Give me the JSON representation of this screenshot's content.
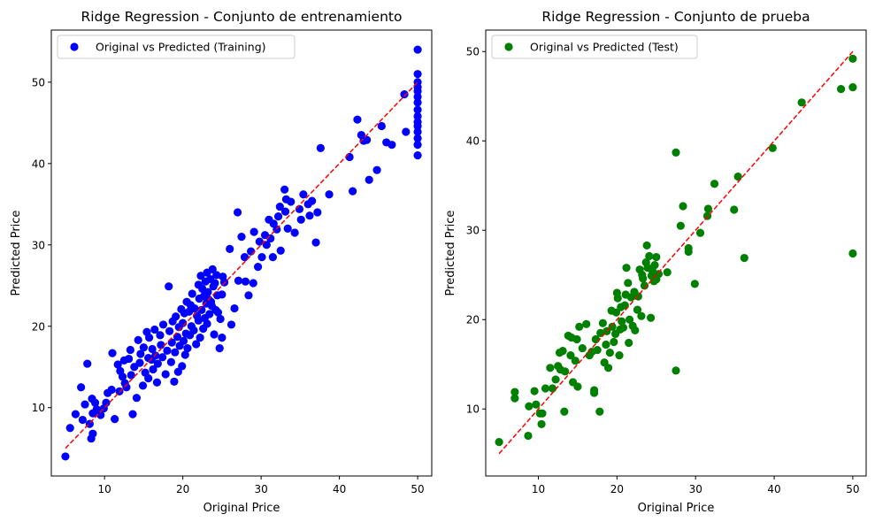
{
  "chart_data": [
    {
      "type": "scatter",
      "title": "Ridge Regression - Conjunto de entrenamiento",
      "xlabel": "Original Price",
      "ylabel": "Predicted Price",
      "xlim": [
        3.2,
        51.8
      ],
      "ylim": [
        1.6,
        56.4
      ],
      "xticks": [
        10,
        20,
        30,
        40,
        50
      ],
      "yticks": [
        10,
        20,
        30,
        40,
        50
      ],
      "legend_position": "upper-left",
      "reference_line": {
        "style": "dashed",
        "color": "#ff0000",
        "from": [
          5,
          5
        ],
        "to": [
          50,
          50
        ]
      },
      "series": [
        {
          "name": "Original vs Predicted (Training)",
          "color": "#0000ff",
          "x": [
            5.0,
            5.6,
            6.3,
            7.0,
            7.2,
            7.5,
            7.8,
            8.1,
            8.3,
            8.5,
            8.5,
            8.4,
            8.8,
            9.0,
            9.5,
            9.9,
            10.2,
            10.4,
            10.9,
            11.0,
            11.3,
            11.7,
            11.9,
            12.0,
            12.3,
            12.5,
            12.6,
            12.8,
            13.1,
            13.3,
            13.4,
            13.6,
            13.8,
            14.1,
            14.3,
            14.5,
            14.6,
            14.9,
            15.0,
            15.2,
            15.4,
            15.6,
            15.6,
            15.7,
            16.0,
            16.1,
            16.2,
            16.4,
            16.5,
            16.7,
            16.8,
            17.1,
            17.2,
            17.4,
            17.5,
            17.8,
            18.0,
            18.2,
            18.3,
            18.5,
            18.6,
            18.7,
            18.9,
            19.0,
            19.1,
            19.3,
            19.4,
            19.5,
            19.6,
            19.8,
            19.9,
            20.0,
            20.1,
            20.2,
            20.3,
            20.4,
            20.5,
            20.6,
            20.8,
            20.9,
            21.0,
            21.1,
            21.2,
            21.4,
            21.5,
            21.7,
            21.8,
            22.0,
            22.0,
            22.1,
            22.2,
            22.3,
            22.4,
            22.5,
            22.6,
            22.7,
            22.8,
            22.9,
            23.0,
            23.1,
            23.1,
            23.2,
            23.3,
            23.4,
            23.5,
            23.6,
            23.7,
            23.8,
            23.9,
            24.0,
            24.1,
            24.2,
            24.3,
            24.4,
            24.5,
            24.7,
            24.8,
            25.0,
            25.0,
            25.1,
            25.3,
            26.0,
            26.2,
            26.6,
            27.0,
            27.1,
            27.5,
            27.9,
            28.0,
            28.4,
            28.7,
            29.0,
            29.1,
            29.6,
            29.8,
            30.1,
            30.5,
            30.7,
            31.0,
            31.2,
            31.5,
            31.6,
            32.0,
            32.2,
            32.4,
            32.5,
            33.0,
            33.1,
            33.2,
            33.4,
            33.8,
            34.3,
            34.9,
            35.1,
            35.4,
            36.0,
            36.2,
            36.5,
            37.0,
            37.2,
            37.6,
            38.7,
            41.3,
            41.7,
            42.3,
            42.8,
            43.1,
            43.5,
            43.8,
            44.8,
            45.4,
            46.0,
            46.7,
            48.3,
            48.5,
            50.0,
            50.0,
            50.0,
            50.0,
            50.0,
            50.0,
            50.0,
            50.0,
            50.0,
            50.0,
            50.0,
            50.0,
            50.0,
            50.0,
            50.0
          ],
          "y": [
            4.0,
            7.5,
            9.2,
            12.5,
            8.5,
            10.4,
            15.4,
            8.0,
            6.2,
            6.8,
            9.3,
            11.1,
            10.6,
            9.8,
            9.1,
            9.9,
            10.6,
            11.8,
            12.2,
            16.7,
            8.6,
            15.3,
            12.0,
            14.5,
            13.8,
            15.8,
            13.0,
            12.5,
            16.0,
            17.1,
            14.0,
            9.2,
            15.0,
            11.2,
            18.3,
            15.5,
            16.6,
            12.7,
            17.4,
            14.3,
            19.3,
            16.1,
            13.6,
            18.6,
            15.9,
            17.2,
            14.7,
            19.6,
            16.4,
            13.1,
            15.4,
            18.9,
            17.7,
            16.2,
            20.2,
            14.1,
            17.0,
            24.9,
            19.4,
            15.6,
            18.0,
            20.6,
            13.2,
            16.8,
            21.2,
            18.7,
            14.4,
            19.9,
            17.6,
            22.1,
            15.1,
            20.4,
            18.2,
            21.6,
            16.5,
            19.1,
            23.0,
            17.3,
            21.8,
            18.9,
            22.6,
            20.0,
            24.0,
            19.5,
            22.2,
            17.8,
            21.3,
            25.1,
            20.7,
            23.4,
            18.6,
            26.2,
            22.0,
            24.6,
            19.7,
            23.7,
            21.0,
            25.5,
            22.8,
            26.6,
            20.3,
            24.2,
            23.3,
            21.5,
            25.8,
            23.0,
            22.5,
            27.0,
            24.9,
            19.0,
            25.3,
            22.0,
            26.3,
            23.8,
            21.7,
            17.3,
            20.9,
            23.9,
            18.6,
            26.1,
            25.4,
            29.5,
            20.2,
            22.2,
            34.0,
            25.6,
            31.0,
            28.5,
            25.5,
            23.8,
            29.2,
            25.3,
            31.6,
            27.3,
            30.4,
            28.5,
            31.2,
            30.0,
            33.1,
            30.8,
            28.5,
            32.6,
            31.9,
            33.5,
            34.7,
            29.3,
            36.8,
            34.1,
            35.6,
            32.0,
            35.3,
            31.5,
            34.4,
            33.1,
            36.2,
            35.0,
            33.6,
            35.4,
            30.3,
            34.0,
            41.9,
            36.2,
            40.8,
            36.6,
            45.4,
            43.5,
            42.8,
            42.9,
            38.0,
            39.2,
            44.6,
            42.6,
            42.3,
            48.5,
            43.9,
            54.0,
            51.0,
            50.0,
            49.4,
            48.9,
            48.2,
            47.5,
            46.6,
            45.8,
            45.1,
            44.6,
            43.9,
            43.1,
            42.3,
            41.0
          ]
        }
      ]
    },
    {
      "type": "scatter",
      "title": "Ridge Regression - Conjunto de prueba",
      "xlabel": "Original Price",
      "ylabel": "Predicted Price",
      "xlim": [
        3.3,
        51.7
      ],
      "ylim": [
        2.5,
        52.4
      ],
      "xticks": [
        10,
        20,
        30,
        40,
        50
      ],
      "yticks": [
        10,
        20,
        30,
        40,
        50
      ],
      "legend_position": "upper-left",
      "reference_line": {
        "style": "dashed",
        "color": "#ff0000",
        "from": [
          5,
          5
        ],
        "to": [
          50,
          50
        ]
      },
      "series": [
        {
          "name": "Original vs Predicted (Test)",
          "color": "#008000",
          "x": [
            5.0,
            7.0,
            7.0,
            8.7,
            8.8,
            9.5,
            9.7,
            10.2,
            10.4,
            10.5,
            10.9,
            11.5,
            11.8,
            12.2,
            12.5,
            12.7,
            12.8,
            13.1,
            13.3,
            13.4,
            13.8,
            14.1,
            14.2,
            14.4,
            14.7,
            14.9,
            15.0,
            15.2,
            15.6,
            16.1,
            16.5,
            16.8,
            17.1,
            17.1,
            17.3,
            17.5,
            17.8,
            17.9,
            18.2,
            18.4,
            18.6,
            18.7,
            18.9,
            19.1,
            19.3,
            19.4,
            19.6,
            19.8,
            19.9,
            20.0,
            20.1,
            20.3,
            20.4,
            20.5,
            20.6,
            20.8,
            21.0,
            21.1,
            21.2,
            21.4,
            21.5,
            21.6,
            21.8,
            22.0,
            22.2,
            22.3,
            22.6,
            22.7,
            22.9,
            23.1,
            23.2,
            23.3,
            23.5,
            23.7,
            23.8,
            23.9,
            24.1,
            24.3,
            24.4,
            24.5,
            24.7,
            24.8,
            25.0,
            25.0,
            25.3,
            26.4,
            27.5,
            27.5,
            28.1,
            28.4,
            29.1,
            29.1,
            29.9,
            30.6,
            31.5,
            31.6,
            32.4,
            34.9,
            35.4,
            36.2,
            39.8,
            43.5,
            48.5,
            50.0,
            50.0,
            50.0
          ],
          "y": [
            6.3,
            11.2,
            11.9,
            7.0,
            10.3,
            12.0,
            10.5,
            9.5,
            8.3,
            9.5,
            12.3,
            14.6,
            12.3,
            13.3,
            14.8,
            16.3,
            14.4,
            16.5,
            9.7,
            14.2,
            18.2,
            16.0,
            18.0,
            13.0,
            15.4,
            17.8,
            12.5,
            19.2,
            16.8,
            19.5,
            16.0,
            16.4,
            12.1,
            11.8,
            17.8,
            16.6,
            9.7,
            18.5,
            19.6,
            15.2,
            17.2,
            18.7,
            14.6,
            16.3,
            21.0,
            19.2,
            17.5,
            18.4,
            20.8,
            23.0,
            22.4,
            16.0,
            18.9,
            21.4,
            19.8,
            19.1,
            21.6,
            22.8,
            25.8,
            24.1,
            17.4,
            20.0,
            22.5,
            19.3,
            23.1,
            18.8,
            21.1,
            22.6,
            25.6,
            20.4,
            25.0,
            24.6,
            23.8,
            26.4,
            28.3,
            25.8,
            27.1,
            20.2,
            24.9,
            25.5,
            24.3,
            26.1,
            24.5,
            27.0,
            25.1,
            25.3,
            38.7,
            14.3,
            30.5,
            32.7,
            28.0,
            27.6,
            24.0,
            29.7,
            31.6,
            32.4,
            35.2,
            32.3,
            36.0,
            26.9,
            39.2,
            44.3,
            45.8,
            49.2,
            46.0,
            27.4
          ]
        }
      ]
    }
  ]
}
